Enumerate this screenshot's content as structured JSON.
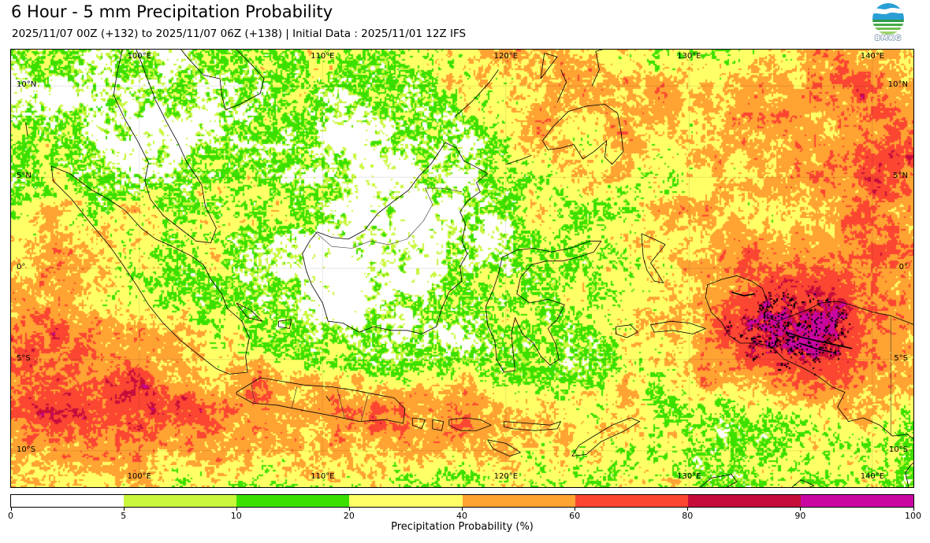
{
  "header": {
    "title": "6 Hour - 5 mm Precipitation Probability",
    "subtitle": "2025/11/07 00Z (+132) to 2025/11/07 06Z (+138) | Initial Data : 2025/11/01 12Z IFS",
    "logo_text": "BMKG"
  },
  "chart_data": {
    "type": "heatmap",
    "title": "6 Hour - 5 mm Precipitation Probability",
    "subtitle": "2025/11/07 00Z (+132) to 2025/11/07 06Z (+138) | Initial Data : 2025/11/01 12Z IFS",
    "colorbar_label": "Precipitation Probability (%)",
    "levels": [
      0,
      5,
      10,
      20,
      40,
      60,
      80,
      90,
      100
    ],
    "colorbar_tick_labels": [
      "0",
      "5",
      "10",
      "20",
      "40",
      "60",
      "80",
      "90",
      "100"
    ],
    "palette": [
      "#ffffff",
      "#c8f73c",
      "#3ce000",
      "#ffff66",
      "#ffa333",
      "#fb4632",
      "#c60c3b",
      "#ca06a1"
    ],
    "extent": {
      "lon_min": 93.0,
      "lon_max": 142.24,
      "lat_min": -12.0,
      "lat_max": 12.0
    },
    "lon_ticks": [
      {
        "label": "100°E",
        "value": 100
      },
      {
        "label": "110°E",
        "value": 110
      },
      {
        "label": "120°E",
        "value": 120
      },
      {
        "label": "130°E",
        "value": 130
      },
      {
        "label": "140°E",
        "value": 140
      }
    ],
    "lat_ticks": [
      {
        "label": "10°N",
        "value": 10
      },
      {
        "label": "5°N",
        "value": 5
      },
      {
        "label": "0°",
        "value": 0
      },
      {
        "label": "5°S",
        "value": -5
      },
      {
        "label": "10°S",
        "value": -10
      }
    ],
    "grid": true,
    "legend_position": "bottom",
    "coastline_color": "#000000",
    "gridline_color": "#000000"
  }
}
